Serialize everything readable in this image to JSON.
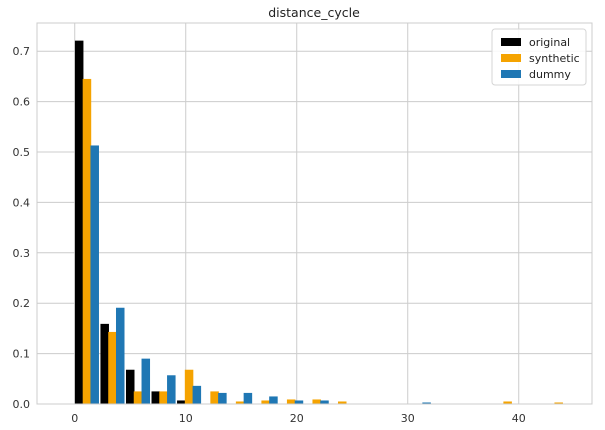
{
  "chart_data": {
    "type": "bar",
    "title": "distance_cycle",
    "xlabel": "",
    "ylabel": "",
    "xlim": [
      -3.4,
      46.6
    ],
    "ylim": [
      0,
      0.756
    ],
    "xticks": [
      0,
      10,
      20,
      30,
      40
    ],
    "yticks": [
      0.0,
      0.1,
      0.2,
      0.3,
      0.4,
      0.5,
      0.6,
      0.7
    ],
    "grid": true,
    "legend_position": "top-right",
    "bin_width": 2.3,
    "series": [
      {
        "name": "original",
        "color": "#000000",
        "x": [
          0.4,
          2.7,
          5.0,
          7.3,
          9.6
        ],
        "values": [
          0.721,
          0.159,
          0.068,
          0.025,
          0.007
        ]
      },
      {
        "name": "synthetic",
        "color": "#F5A300",
        "x": [
          1.1,
          3.4,
          5.7,
          8.0,
          10.3,
          12.6,
          14.9,
          17.2,
          19.5,
          21.8,
          24.1,
          39.0,
          43.6
        ],
        "values": [
          0.645,
          0.143,
          0.025,
          0.025,
          0.068,
          0.025,
          0.005,
          0.007,
          0.009,
          0.009,
          0.005,
          0.005,
          0.003
        ]
      },
      {
        "name": "dummy",
        "color": "#1F77B4",
        "x": [
          1.8,
          4.1,
          6.4,
          8.7,
          11.0,
          13.3,
          15.6,
          17.9,
          20.2,
          22.5,
          31.7
        ],
        "values": [
          0.513,
          0.191,
          0.09,
          0.057,
          0.036,
          0.022,
          0.022,
          0.015,
          0.007,
          0.007,
          0.003
        ]
      }
    ]
  }
}
